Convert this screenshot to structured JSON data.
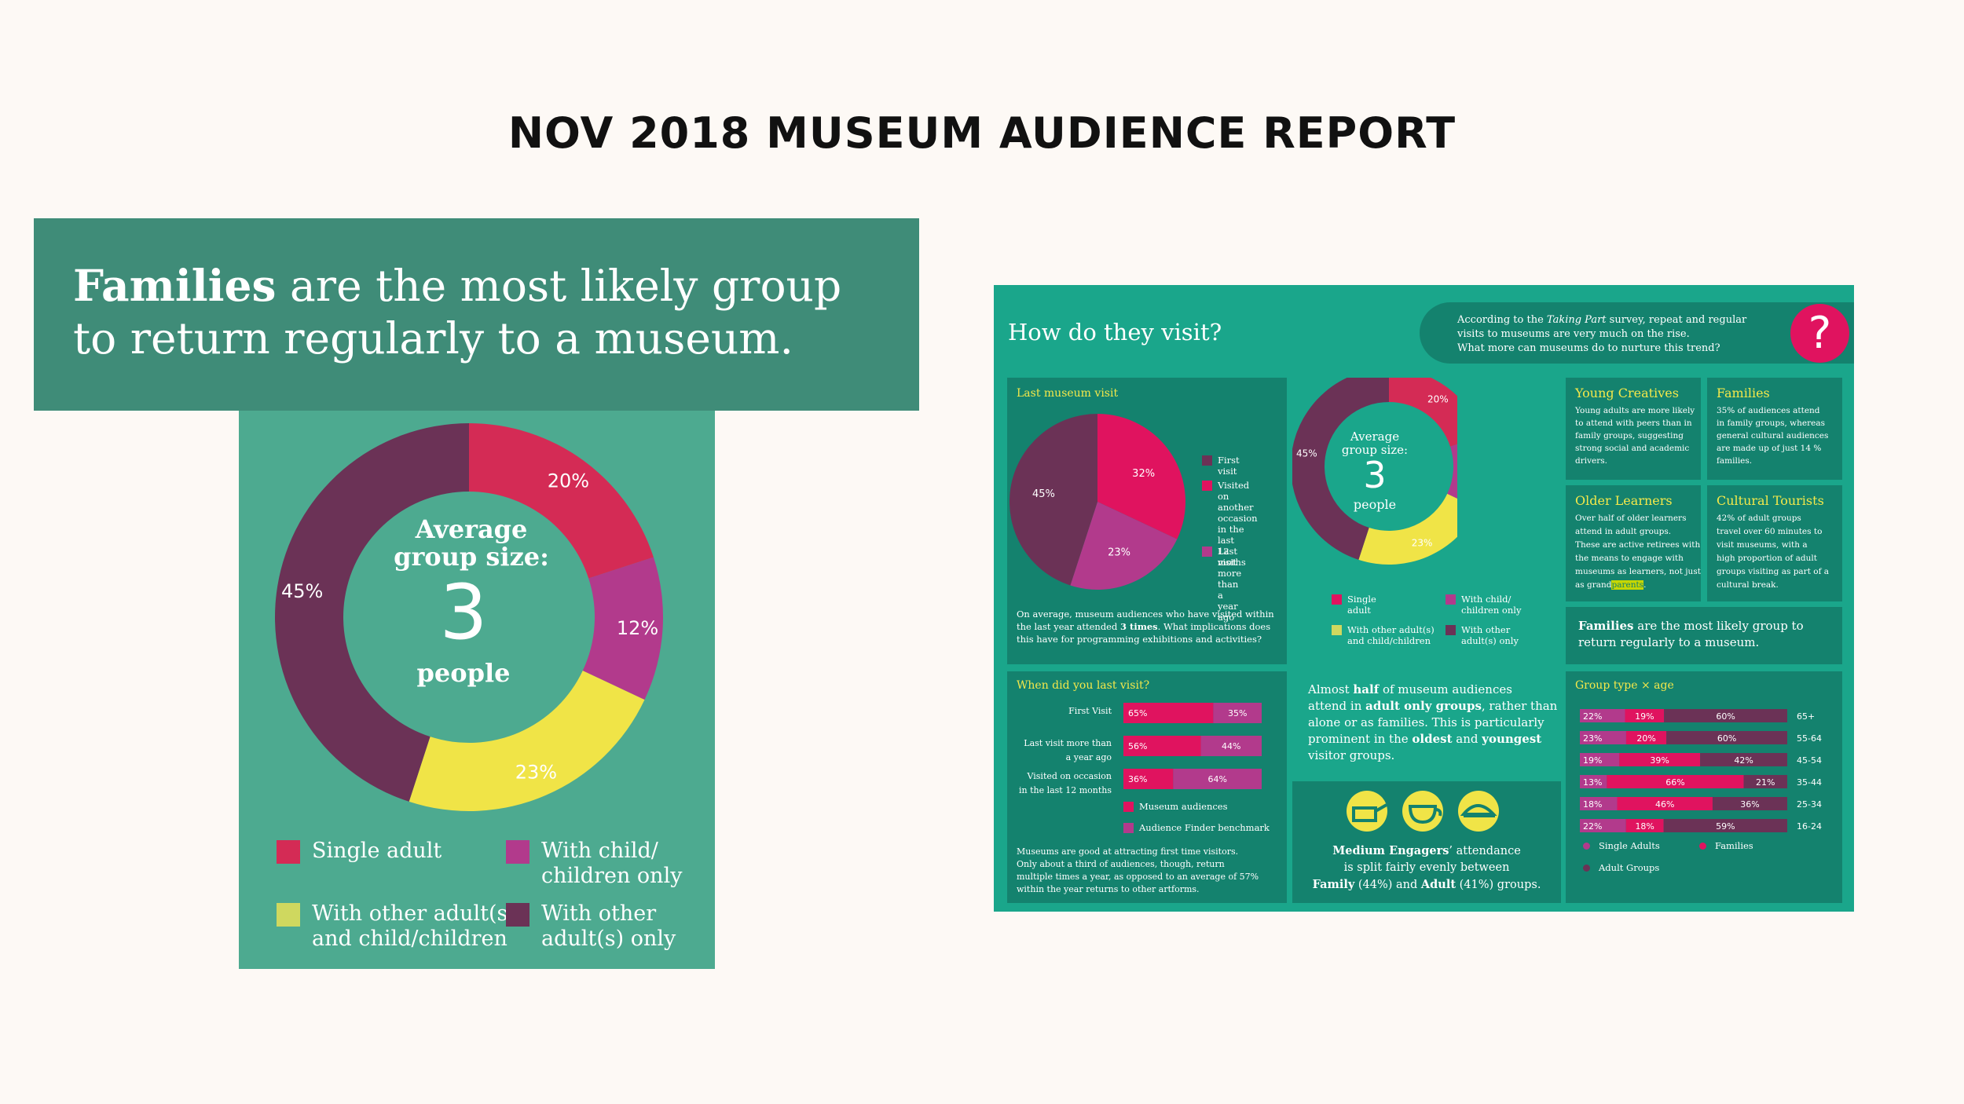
{
  "page_title": "NOV 2018 MUSEUM AUDIENCE REPORT",
  "colors": {
    "single_adult": "#d42b55",
    "with_child": "#b23a8c",
    "with_other_and_child": "#f0e447",
    "with_other_adults": "#6b3256",
    "panel_dark": "#3f8c78",
    "panel_mid": "#4daa90",
    "info_bg": "#1aa68b",
    "info_card": "#14826e",
    "magenta": "#e0135f",
    "yellow_title": "#f4e84a"
  },
  "left_panel": {
    "headline_bold": "Families",
    "headline_rest": " are the most likely group to return regularly to a museum.",
    "center_line1": "Average",
    "center_line2": "group size:",
    "center_number": "3",
    "center_line3": "people",
    "legend": [
      {
        "label1": "Single adult",
        "label2": ""
      },
      {
        "label1": "With child/",
        "label2": "children only"
      },
      {
        "label1": "With other adult(s)",
        "label2": "and child/children"
      },
      {
        "label1": "With other",
        "label2": "adult(s) only"
      }
    ]
  },
  "chart_data": [
    {
      "type": "pie",
      "title": "Average group size: 3 people",
      "categories": [
        "Single adult",
        "With child/children only",
        "With other adult(s) and child/children",
        "With other adult(s) only"
      ],
      "values": [
        20,
        12,
        23,
        45
      ],
      "labels": [
        "20%",
        "12%",
        "23%",
        "45%"
      ]
    },
    {
      "type": "pie",
      "title": "Last museum visit",
      "categories": [
        "First visit",
        "Visited on another occasion in the last 12 moths",
        "Last visit more than a year ago"
      ],
      "values": [
        45,
        32,
        23
      ],
      "labels": [
        "45%",
        "32%",
        "23%"
      ]
    },
    {
      "type": "bar",
      "title": "When did you last visit?",
      "categories": [
        "First Visit",
        "Last visit more than a year ago",
        "Visited on occasion in the last 12 months"
      ],
      "series": [
        {
          "name": "Museum audiences",
          "values": [
            65,
            56,
            36
          ],
          "labels": [
            "65%",
            "56%",
            "36%"
          ]
        },
        {
          "name": "Audience Finder benchmark",
          "values": [
            35,
            44,
            64
          ],
          "labels": [
            "35%",
            "44%",
            "64%"
          ]
        }
      ]
    },
    {
      "type": "bar",
      "title": "Group type × age",
      "categories": [
        "65+",
        "55-64",
        "45-54",
        "35-44",
        "25-34",
        "16-24"
      ],
      "series": [
        {
          "name": "Single Adults",
          "values": [
            22,
            23,
            19,
            13,
            18,
            22
          ],
          "labels": [
            "22%",
            "23%",
            "19%",
            "13%",
            "18%",
            "22%"
          ]
        },
        {
          "name": "Families",
          "values": [
            19,
            20,
            39,
            66,
            46,
            18
          ],
          "labels": [
            "19%",
            "20%",
            "39%",
            "66%",
            "46%",
            "18%"
          ]
        },
        {
          "name": "Adult Groups",
          "values": [
            60,
            60,
            42,
            21,
            36,
            59
          ],
          "labels": [
            "60%",
            "60%",
            "42%",
            "21%",
            "36%",
            "59%"
          ]
        }
      ]
    }
  ],
  "infographic": {
    "heading": "How do they visit?",
    "banner_line1a": "According to the ",
    "banner_line1b": "Taking Part",
    "banner_line1c": " survey, repeat and regular",
    "banner_line2": "visits to museums are very much on the rise.",
    "banner_line3": "What more can museums do to nurture this trend?",
    "question_mark": "?",
    "last_visit": {
      "title": "Last museum visit",
      "legend": [
        {
          "l1": "First visit",
          "l2": "",
          "l3": "",
          "l4": ""
        },
        {
          "l1": "Visited on",
          "l2": "another",
          "l3": "occasion",
          "l4": "in the last",
          "l5": "12 moths"
        },
        {
          "l1": "Last visit",
          "l2": "more than",
          "l3": "a year ago",
          "l4": ""
        }
      ],
      "note_line1": "On average, museum audiences who have visited within",
      "note_line2a": "the last year attended ",
      "note_line2b": "3 times",
      "note_line2c": ". What implications does",
      "note_line3": "this have for programming exhibitions and activities?"
    },
    "mini_donut": {
      "line1": "Average",
      "line2": "group size:",
      "number": "3",
      "line3": "people",
      "legend": [
        {
          "l1": "Single adult",
          "l2": ""
        },
        {
          "l1": "With child/",
          "l2": "children only"
        },
        {
          "l1": "With other adult(s)",
          "l2": "and child/children"
        },
        {
          "l1": "With other",
          "l2": "adult(s) only"
        }
      ]
    },
    "segments": [
      {
        "title": "Young Creatives",
        "lines": [
          "Young adults are more likely",
          "to attend with peers than in",
          "family groups, suggesting",
          "strong social and academic",
          "drivers."
        ]
      },
      {
        "title": "Families",
        "lines": [
          "35% of audiences attend",
          "in family groups, whereas",
          "general cultural audiences",
          "are made up of just 14 %",
          "families."
        ]
      },
      {
        "title": "Older Learners",
        "lines": [
          "Over half of older learners",
          "attend in adult groups.",
          "These are active retirees with",
          "the means to engage with",
          "museums as learners, not just"
        ],
        "last_a": "as grand",
        "last_b": "parents",
        "last_c": "."
      },
      {
        "title": "Cultural Tourists",
        "lines": [
          "42% of adult groups",
          "travel over 60 minutes to",
          "visit museums, with a",
          "high proportion of adult",
          "groups visiting as part of a",
          "cultural break."
        ]
      }
    ],
    "families_box": {
      "bold": "Families",
      "rest": " are the most likely group to",
      "line2": "return regularly to a museum."
    },
    "when_visit": {
      "title": "When did you last visit?",
      "row_labels": [
        [
          "First Visit"
        ],
        [
          "Last visit more than",
          "a year ago"
        ],
        [
          "Visited on occasion",
          "in the last 12 months"
        ]
      ],
      "note": [
        "Museums are good at attracting first time visitors.",
        "Only about a third of audiences, though, return",
        "multiple times a year, as opposed to an average of 57%",
        "within the year returns to other artforms."
      ]
    },
    "almost_half": {
      "l1a": "Almost ",
      "l1b": "half",
      "l1c": " of museum audiences",
      "l2a": "attend in ",
      "l2b": "adult only groups",
      "l2c": ", rather than",
      "l3": "alone or as families. This is particularly",
      "l4a": "prominent in the ",
      "l4b": "oldest",
      "l4c": " and ",
      "l4d": "youngest",
      "l5": "visitor groups."
    },
    "medium_engagers": {
      "l1a": "Medium Engagers",
      "l1b": "’ attendance",
      "l2": "is split fairly evenly between",
      "l3a": "Family",
      "l3b": " (44%) and ",
      "l3c": "Adult",
      "l3d": " (41%) groups."
    }
  }
}
